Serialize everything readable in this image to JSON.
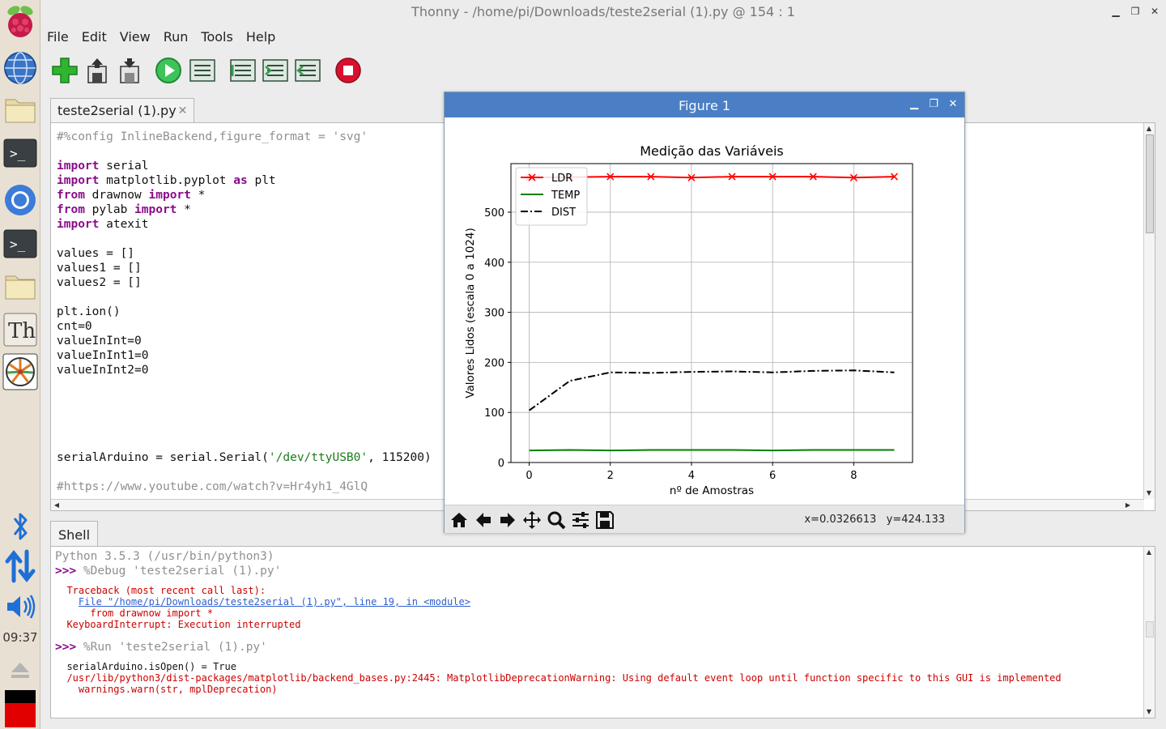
{
  "window": {
    "title": "Thonny  -  /home/pi/Downloads/teste2serial (1).py  @  154 : 1"
  },
  "menu": [
    "File",
    "Edit",
    "View",
    "Run",
    "Tools",
    "Help"
  ],
  "toolbar": {
    "buttons": [
      "new-file",
      "open-file",
      "save-file",
      "run",
      "debug",
      "step-over",
      "step-into",
      "step-out",
      "stop"
    ]
  },
  "launcher": {
    "clock": "09:37"
  },
  "editor": {
    "tab_label": "teste2serial (1).py",
    "tab_close": "✕",
    "lines": [
      [
        {
          "t": "#%config InlineBackend,figure_format = 'svg'",
          "c": "cm"
        }
      ],
      [],
      [
        {
          "t": "import",
          "c": "kw"
        },
        {
          "t": " serial",
          "c": ""
        }
      ],
      [
        {
          "t": "import",
          "c": "kw"
        },
        {
          "t": " matplotlib.pyplot ",
          "c": ""
        },
        {
          "t": "as",
          "c": "kw"
        },
        {
          "t": " plt",
          "c": ""
        }
      ],
      [
        {
          "t": "from",
          "c": "kw"
        },
        {
          "t": " drawnow ",
          "c": ""
        },
        {
          "t": "import",
          "c": "kw"
        },
        {
          "t": " *",
          "c": ""
        }
      ],
      [
        {
          "t": "from",
          "c": "kw"
        },
        {
          "t": " pylab ",
          "c": ""
        },
        {
          "t": "import",
          "c": "kw"
        },
        {
          "t": " *",
          "c": ""
        }
      ],
      [
        {
          "t": "import",
          "c": "kw"
        },
        {
          "t": " atexit",
          "c": ""
        }
      ],
      [],
      [
        {
          "t": "values = []",
          "c": ""
        }
      ],
      [
        {
          "t": "values1 = []",
          "c": ""
        }
      ],
      [
        {
          "t": "values2 = []",
          "c": ""
        }
      ],
      [],
      [
        {
          "t": "plt.ion()",
          "c": ""
        }
      ],
      [
        {
          "t": "cnt=0",
          "c": ""
        }
      ],
      [
        {
          "t": "valueInInt=0",
          "c": ""
        }
      ],
      [
        {
          "t": "valueInInt1=0",
          "c": ""
        }
      ],
      [
        {
          "t": "valueInInt2=0",
          "c": ""
        }
      ],
      [],
      [],
      [],
      [],
      [],
      [
        {
          "t": "serialArduino = serial.Serial(",
          "c": ""
        },
        {
          "t": "'/dev/ttyUSB0'",
          "c": "st"
        },
        {
          "t": ", 115200)",
          "c": ""
        }
      ],
      [],
      [
        {
          "t": "#https://www.youtube.com/watch?v=Hr4yh1_4GlQ",
          "c": "cm"
        }
      ]
    ]
  },
  "shell": {
    "tab_label": "Shell",
    "lines": [
      {
        "y": 4,
        "size": "big",
        "parts": [
          {
            "t": "Python 3.5.3 (/usr/bin/python3)",
            "c": "gray"
          }
        ]
      },
      {
        "y": 22,
        "size": "big",
        "parts": [
          {
            "t": ">>> ",
            "c": "prompt"
          },
          {
            "t": "%Debug 'teste2serial (1).py'",
            "c": "gray"
          }
        ]
      },
      {
        "y": 47,
        "size": "small",
        "parts": [
          {
            "t": "  Traceback (most recent call last):",
            "c": "red"
          }
        ]
      },
      {
        "y": 61,
        "size": "small",
        "parts": [
          {
            "t": "    ",
            "c": ""
          },
          {
            "t": "File \"/home/pi/Downloads/teste2serial (1).py\", line 19, in <module>",
            "c": "link"
          }
        ]
      },
      {
        "y": 75,
        "size": "small",
        "parts": [
          {
            "t": "      from drawnow import *",
            "c": "red"
          }
        ]
      },
      {
        "y": 89,
        "size": "small",
        "parts": [
          {
            "t": "  KeyboardInterrupt: Execution interrupted",
            "c": "red"
          }
        ]
      },
      {
        "y": 116,
        "size": "big",
        "parts": [
          {
            "t": ">>> ",
            "c": "prompt"
          },
          {
            "t": "%Run 'teste2serial (1).py'",
            "c": "gray"
          }
        ]
      },
      {
        "y": 141,
        "size": "small",
        "parts": [
          {
            "t": "  serialArduino.isOpen() = True",
            "c": "dark"
          }
        ]
      },
      {
        "y": 155,
        "size": "small",
        "parts": [
          {
            "t": "  /usr/lib/python3/dist-packages/matplotlib/backend_bases.py:2445: MatplotlibDeprecationWarning: Using default event loop until function specific to this GUI is implemented",
            "c": "red"
          }
        ]
      },
      {
        "y": 169,
        "size": "small",
        "parts": [
          {
            "t": "    warnings.warn(str, mplDeprecation)",
            "c": "red"
          }
        ]
      }
    ]
  },
  "figure": {
    "title": "Figure 1",
    "coords": "x=0.0326613   y=424.133",
    "toolbar": [
      "home-icon",
      "back-icon",
      "forward-icon",
      "pan-icon",
      "zoom-icon",
      "configure-icon",
      "save-icon"
    ]
  },
  "chart_data": {
    "type": "line",
    "title": "Medição das Variáveis",
    "xlabel": "nº de Amostras",
    "ylabel": "Valores Lidos (escala 0 a 1024)",
    "xlim": [
      -0.45,
      9.45
    ],
    "ylim": [
      0,
      597
    ],
    "xticks": [
      0,
      2,
      4,
      6,
      8
    ],
    "yticks": [
      0,
      100,
      200,
      300,
      400,
      500
    ],
    "grid": true,
    "legend_position": "upper left",
    "x": [
      0,
      1,
      2,
      3,
      4,
      5,
      6,
      7,
      8,
      9
    ],
    "series": [
      {
        "name": "LDR",
        "color": "#ff0000",
        "style": "solid",
        "marker": "x",
        "values": [
          569,
          570,
          571,
          571,
          569,
          571,
          571,
          571,
          569,
          571
        ]
      },
      {
        "name": "TEMP",
        "color": "#008000",
        "style": "solid",
        "marker": "none",
        "values": [
          24,
          25,
          24,
          25,
          25,
          25,
          24,
          25,
          25,
          25
        ]
      },
      {
        "name": "DIST",
        "color": "#000000",
        "style": "dashdot",
        "marker": "none",
        "values": [
          104,
          163,
          180,
          179,
          181,
          182,
          180,
          183,
          184,
          180
        ]
      }
    ]
  }
}
